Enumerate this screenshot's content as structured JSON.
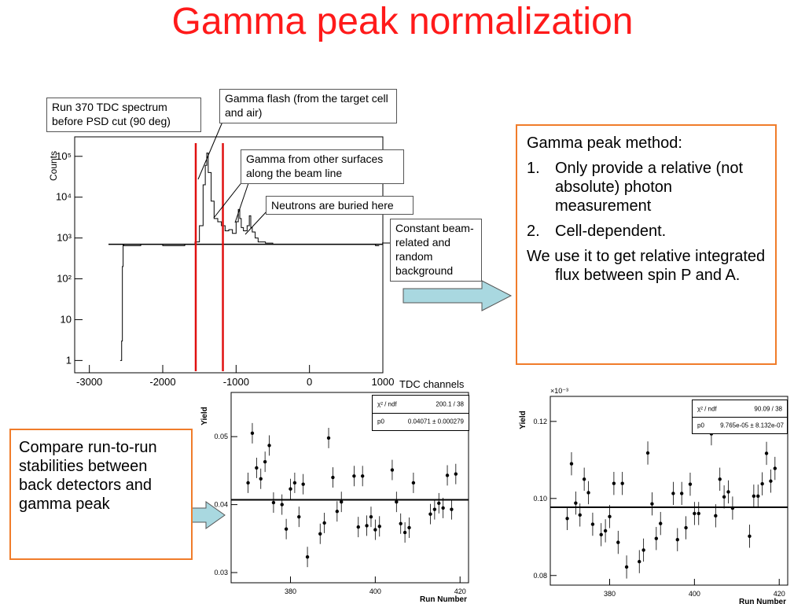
{
  "slide": {
    "title": "Gamma peak normalization",
    "arrow_color": "#a9d8e0",
    "title_color": "#ff1a1a",
    "box_border_color": "#f07c2a"
  },
  "method_box": {
    "heading": "Gamma peak method:",
    "items": [
      {
        "num": "1.",
        "text": "Only provide a relative (not absolute) photon measurement"
      },
      {
        "num": "2.",
        "text": "Cell-dependent."
      }
    ],
    "closing": "We use it to get relative integrated flux between spin P and A."
  },
  "compare_box": {
    "text": "Compare run-to-run stabilities between back detectors and gamma peak"
  },
  "tdc_plot": {
    "callouts": {
      "run": "Run 370 TDC spectrum before PSD cut (90 deg)",
      "flash": "Gamma flash (from the target cell and air)",
      "other": "Gamma from other surfaces along the beam line",
      "neutrons": "Neutrons are buried here",
      "background": "Constant beam-related and random background"
    }
  },
  "chart_data": [
    {
      "type": "line",
      "ylabel": "Counts",
      "xlabel": "TDC channels",
      "xlim": [
        -3200,
        1000
      ],
      "ylim": [
        0.5,
        300000
      ],
      "yscale": "log",
      "x_ticks": [
        "-3000",
        "-2000",
        "-1000",
        "0",
        "1000"
      ],
      "y_ticks": [
        "1",
        "10",
        "10²",
        "10³",
        "10⁴",
        "10⁵"
      ],
      "cut_lines": [
        -1550,
        -1180
      ],
      "background_level": 700,
      "series": [
        {
          "x": [
            -2580,
            -2560,
            -2550,
            -2540,
            -2530,
            -2500,
            -2300,
            -2000,
            -1700,
            -1600,
            -1560,
            -1500,
            -1450,
            -1420,
            -1400,
            -1380,
            -1340,
            -1300,
            -1250,
            -1200,
            -1150,
            -1100,
            -1050,
            -1000,
            -970,
            -950,
            -930,
            -900,
            -850,
            -820,
            -800,
            -780,
            -740,
            -700,
            -600,
            -500,
            -300,
            0,
            300,
            600,
            900,
            950
          ],
          "y": [
            1,
            3,
            200,
            700,
            650,
            650,
            700,
            650,
            700,
            700,
            800,
            2000,
            20000,
            60000,
            120000,
            40000,
            8000,
            3000,
            2500,
            2000,
            1500,
            1600,
            1300,
            2500,
            5000,
            3000,
            1800,
            1500,
            2000,
            3500,
            1800,
            1400,
            1000,
            800,
            750,
            700,
            700,
            700,
            700,
            700,
            650,
            650
          ]
        }
      ]
    },
    {
      "type": "scatter",
      "ylabel": "Yield",
      "xlabel": "Run Number",
      "xlim": [
        366,
        422
      ],
      "ylim": [
        0.0285,
        0.0565
      ],
      "x_ticks": [
        380,
        400,
        420
      ],
      "y_ticks": [
        "0.03",
        "0.04",
        "0.05"
      ],
      "fit": {
        "chi2_label": "χ² / ndf",
        "chi2_value": "200.1 / 38",
        "p0_label": "p0",
        "p0_value": "0.04071 ± 0.000279",
        "value": 0.04071
      },
      "points": [
        [
          370,
          0.0432,
          0.0015
        ],
        [
          371,
          0.0505,
          0.0015
        ],
        [
          372,
          0.0454,
          0.0015
        ],
        [
          373,
          0.0438,
          0.0015
        ],
        [
          374,
          0.0463,
          0.0015
        ],
        [
          375,
          0.0487,
          0.0015
        ],
        [
          376,
          0.0403,
          0.0015
        ],
        [
          378,
          0.04,
          0.0015
        ],
        [
          379,
          0.0364,
          0.0015
        ],
        [
          380,
          0.0423,
          0.0015
        ],
        [
          381,
          0.0432,
          0.0015
        ],
        [
          382,
          0.0382,
          0.0015
        ],
        [
          383,
          0.043,
          0.0015
        ],
        [
          384,
          0.0323,
          0.0015
        ],
        [
          387,
          0.0357,
          0.0015
        ],
        [
          388,
          0.0373,
          0.0015
        ],
        [
          389,
          0.0498,
          0.0015
        ],
        [
          390,
          0.044,
          0.0015
        ],
        [
          391,
          0.039,
          0.0015
        ],
        [
          392,
          0.0404,
          0.0015
        ],
        [
          395,
          0.0442,
          0.0015
        ],
        [
          396,
          0.0367,
          0.0015
        ],
        [
          397,
          0.0442,
          0.0015
        ],
        [
          398,
          0.0369,
          0.0015
        ],
        [
          399,
          0.0382,
          0.0015
        ],
        [
          400,
          0.0363,
          0.0015
        ],
        [
          401,
          0.0368,
          0.0015
        ],
        [
          404,
          0.0451,
          0.0015
        ],
        [
          405,
          0.0404,
          0.0015
        ],
        [
          406,
          0.0372,
          0.0015
        ],
        [
          407,
          0.0359,
          0.0015
        ],
        [
          408,
          0.0366,
          0.0015
        ],
        [
          409,
          0.0432,
          0.0015
        ],
        [
          413,
          0.0386,
          0.0015
        ],
        [
          414,
          0.0393,
          0.0015
        ],
        [
          415,
          0.0402,
          0.0015
        ],
        [
          416,
          0.0395,
          0.0015
        ],
        [
          417,
          0.0443,
          0.0015
        ],
        [
          418,
          0.0393,
          0.0015
        ],
        [
          419,
          0.0445,
          0.0015
        ]
      ]
    },
    {
      "type": "scatter",
      "ylabel": "Yield",
      "xlabel": "Run Number",
      "exponent": "×10⁻³",
      "xlim": [
        366,
        422
      ],
      "ylim": [
        0.0775,
        0.1265
      ],
      "x_ticks": [
        380,
        400,
        420
      ],
      "y_ticks": [
        "0.08",
        "0.10",
        "0.12"
      ],
      "fit": {
        "chi2_label": "χ² / ndf",
        "chi2_value": "90.09 / 38",
        "p0_label": "p0",
        "p0_value": "9.765e-05 ± 8.132e-07",
        "value": 0.0977
      },
      "points": [
        [
          370,
          0.0948,
          0.003
        ],
        [
          371,
          0.109,
          0.003
        ],
        [
          372,
          0.0988,
          0.003
        ],
        [
          373,
          0.0957,
          0.003
        ],
        [
          374,
          0.105,
          0.003
        ],
        [
          375,
          0.1015,
          0.003
        ],
        [
          376,
          0.0933,
          0.003
        ],
        [
          378,
          0.0906,
          0.003
        ],
        [
          379,
          0.0916,
          0.003
        ],
        [
          380,
          0.0953,
          0.003
        ],
        [
          381,
          0.1039,
          0.003
        ],
        [
          382,
          0.0886,
          0.003
        ],
        [
          383,
          0.1039,
          0.003
        ],
        [
          384,
          0.0822,
          0.003
        ],
        [
          387,
          0.0836,
          0.003
        ],
        [
          388,
          0.0866,
          0.003
        ],
        [
          389,
          0.1118,
          0.003
        ],
        [
          390,
          0.0986,
          0.003
        ],
        [
          391,
          0.0896,
          0.003
        ],
        [
          392,
          0.0935,
          0.003
        ],
        [
          395,
          0.1013,
          0.003
        ],
        [
          396,
          0.0893,
          0.003
        ],
        [
          397,
          0.1013,
          0.003
        ],
        [
          398,
          0.0924,
          0.003
        ],
        [
          399,
          0.1037,
          0.003
        ],
        [
          400,
          0.0961,
          0.003
        ],
        [
          401,
          0.0961,
          0.003
        ],
        [
          404,
          0.1168,
          0.003
        ],
        [
          405,
          0.0955,
          0.003
        ],
        [
          406,
          0.105,
          0.003
        ],
        [
          407,
          0.1004,
          0.003
        ],
        [
          408,
          0.1017,
          0.003
        ],
        [
          409,
          0.0975,
          0.003
        ],
        [
          413,
          0.0902,
          0.003
        ],
        [
          414,
          0.1006,
          0.003
        ],
        [
          415,
          0.1006,
          0.003
        ],
        [
          416,
          0.1038,
          0.003
        ],
        [
          417,
          0.1117,
          0.003
        ],
        [
          418,
          0.1045,
          0.003
        ],
        [
          419,
          0.1078,
          0.003
        ]
      ]
    }
  ]
}
